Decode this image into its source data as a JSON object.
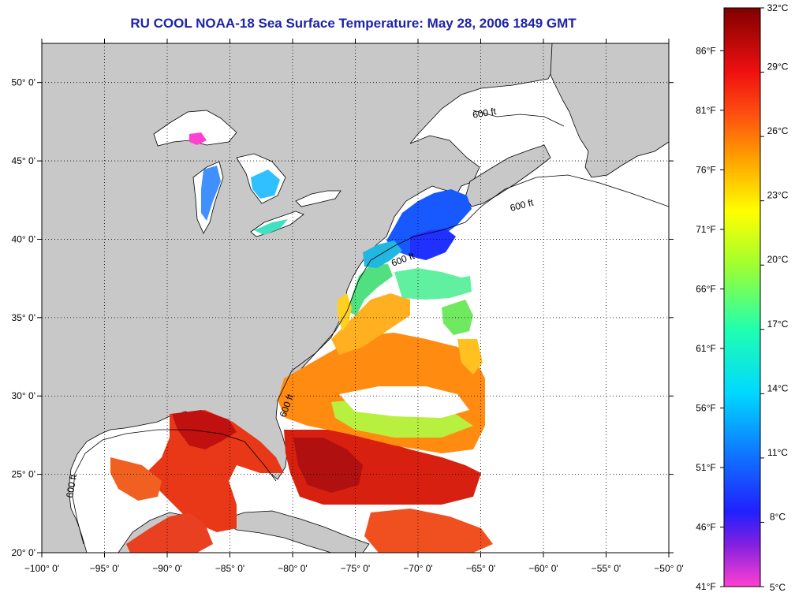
{
  "title": "RU COOL  NOAA-18  Sea Surface Temperature:  May 28, 2006 1849 GMT",
  "map": {
    "lon_range": [
      -100,
      -50
    ],
    "lat_range": [
      20,
      52.5
    ],
    "lon_ticks": [
      {
        "v": -100,
        "label": "−100° 0'"
      },
      {
        "v": -95,
        "label": "−95° 0'"
      },
      {
        "v": -90,
        "label": "−90° 0'"
      },
      {
        "v": -85,
        "label": "−85° 0'"
      },
      {
        "v": -80,
        "label": "−80° 0'"
      },
      {
        "v": -75,
        "label": "−75° 0'"
      },
      {
        "v": -70,
        "label": "−70° 0'"
      },
      {
        "v": -65,
        "label": "−65° 0'"
      },
      {
        "v": -60,
        "label": "−60° 0'"
      },
      {
        "v": -55,
        "label": "−55° 0'"
      },
      {
        "v": -50,
        "label": "−50° 0'"
      }
    ],
    "lat_ticks": [
      {
        "v": 20,
        "label": "20° 0'"
      },
      {
        "v": 25,
        "label": "25° 0'"
      },
      {
        "v": 30,
        "label": "30° 0'"
      },
      {
        "v": 35,
        "label": "35° 0'"
      },
      {
        "v": 40,
        "label": "40° 0'"
      },
      {
        "v": 45,
        "label": "45° 0'"
      },
      {
        "v": 50,
        "label": "50° 0'"
      }
    ],
    "contour_label": "600 ft",
    "colors": {
      "land": "#c8c8c8",
      "ocean": "#ffffff",
      "grid": "#000000"
    }
  },
  "colorbar": {
    "range_c": [
      5,
      32
    ],
    "celsius_ticks": [
      {
        "v": 32,
        "label": "32°C"
      },
      {
        "v": 29,
        "label": "29°C"
      },
      {
        "v": 26,
        "label": "26°C"
      },
      {
        "v": 23,
        "label": "23°C"
      },
      {
        "v": 20,
        "label": "20°C"
      },
      {
        "v": 17,
        "label": "17°C"
      },
      {
        "v": 14,
        "label": "14°C"
      },
      {
        "v": 11,
        "label": "11°C"
      },
      {
        "v": 8,
        "label": "8°C"
      },
      {
        "v": 5,
        "label": "5°C"
      }
    ],
    "fahrenheit_ticks": [
      {
        "v": 86,
        "label": "86°F"
      },
      {
        "v": 81,
        "label": "81°F"
      },
      {
        "v": 76,
        "label": "76°F"
      },
      {
        "v": 71,
        "label": "71°F"
      },
      {
        "v": 66,
        "label": "66°F"
      },
      {
        "v": 61,
        "label": "61°F"
      },
      {
        "v": 56,
        "label": "56°F"
      },
      {
        "v": 51,
        "label": "51°F"
      },
      {
        "v": 46,
        "label": "46°F"
      },
      {
        "v": 41,
        "label": "41°F"
      }
    ],
    "color_stops": [
      {
        "c": 5,
        "color": "#ff40d0"
      },
      {
        "c": 7,
        "color": "#8020e0"
      },
      {
        "c": 8.5,
        "color": "#2020ff"
      },
      {
        "c": 11,
        "color": "#1070ff"
      },
      {
        "c": 14,
        "color": "#00d8ff"
      },
      {
        "c": 17,
        "color": "#20ffb0"
      },
      {
        "c": 20,
        "color": "#a0ff30"
      },
      {
        "c": 22.5,
        "color": "#ffff00"
      },
      {
        "c": 25,
        "color": "#ffa000"
      },
      {
        "c": 27,
        "color": "#ff5010"
      },
      {
        "c": 29,
        "color": "#f01010"
      },
      {
        "c": 32,
        "color": "#800000"
      }
    ]
  }
}
